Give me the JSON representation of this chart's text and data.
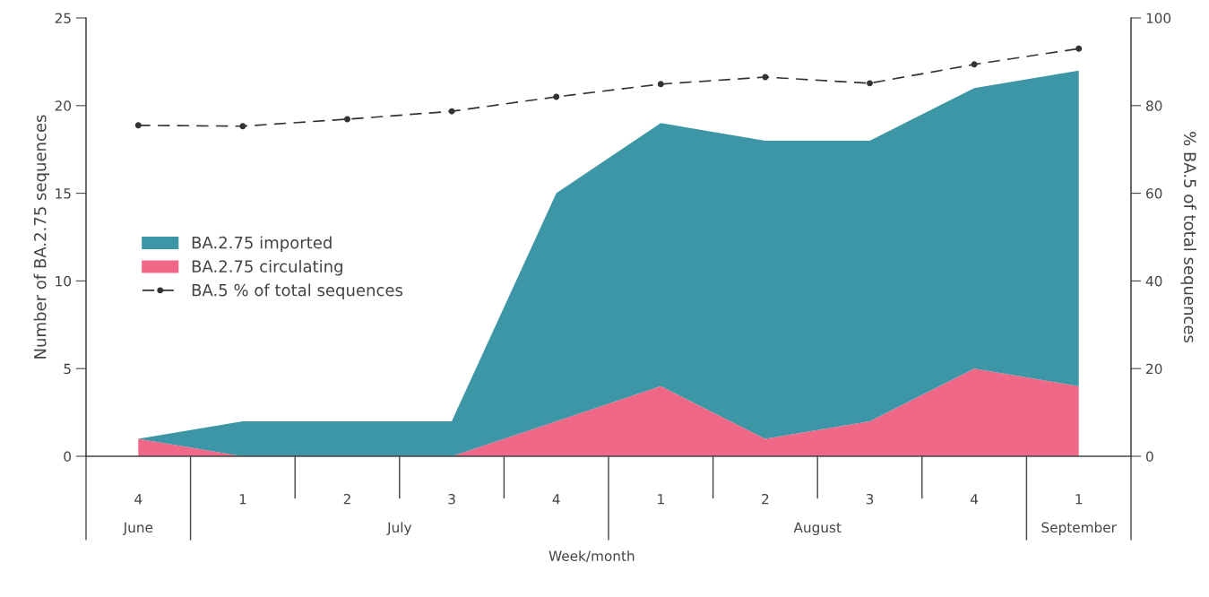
{
  "chart_data": {
    "type": "area",
    "stacked": true,
    "xlabel": "Week/month",
    "ylabel": "Number of BA.2.75 sequences",
    "y2label": "% BA.5 of total sequences",
    "categories": [
      "4",
      "1",
      "2",
      "3",
      "4",
      "1",
      "2",
      "3",
      "4",
      "1"
    ],
    "series": [
      {
        "name": "BA.2.75 circulating",
        "color": "#f06888",
        "values": [
          1,
          0,
          0,
          0,
          2,
          4,
          1,
          2,
          5,
          4
        ]
      },
      {
        "name": "BA.2.75 imported",
        "color": "#3d96a6",
        "values": [
          0,
          2,
          2,
          2,
          13,
          15,
          17,
          16,
          16,
          18
        ]
      },
      {
        "name": "BA.5 % of total sequences",
        "type": "line",
        "axis": "y2",
        "color": "#333333",
        "marker": "circle",
        "line_style": "dashed",
        "values": [
          75.5,
          75.3,
          76.9,
          78.7,
          82.0,
          84.9,
          86.5,
          85.1,
          89.4,
          93.0
        ]
      }
    ],
    "ylim": [
      0,
      25
    ],
    "yticks": [
      0,
      5,
      10,
      15,
      20,
      25
    ],
    "y2lim": [
      0,
      100
    ],
    "y2ticks": [
      0,
      20,
      40,
      60,
      80,
      100
    ],
    "annotations": [
      "June",
      "July",
      "August",
      "September"
    ],
    "grid": false,
    "legend": "left"
  }
}
